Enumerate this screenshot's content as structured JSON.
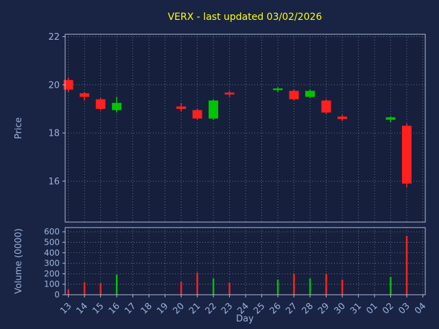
{
  "colors": {
    "background": "#192444",
    "plot_background": "#16203c",
    "title": "#ffff00",
    "axis_label": "#9db2dc",
    "tick_label": "#9db2dc",
    "grid": "#93a1bc",
    "spine": "#afbcd6",
    "up": "#00c400",
    "down": "#ff2020"
  },
  "chart_data": {
    "type": "candlestick",
    "title": "VERX - last updated 03/02/2026",
    "xlabel": "Day",
    "legend": "none",
    "grid": "dotted",
    "price_panel": {
      "ylabel": "Price",
      "yticks": [
        16,
        18,
        20,
        22
      ],
      "ylim": [
        14.3,
        22.1
      ]
    },
    "volume_panel": {
      "ylabel": "Volume (0000)",
      "yticks": [
        0,
        100,
        200,
        300,
        400,
        500,
        600
      ],
      "ylim": [
        0,
        640
      ]
    },
    "x_categories": [
      "13",
      "14",
      "15",
      "16",
      "17",
      "18",
      "19",
      "20",
      "21",
      "22",
      "23",
      "24",
      "25",
      "26",
      "27",
      "28",
      "29",
      "30",
      "31",
      "01",
      "02",
      "03",
      "04"
    ],
    "candles": [
      {
        "day": "13",
        "open": 20.2,
        "high": 20.3,
        "low": 19.7,
        "close": 19.8,
        "volume": 50
      },
      {
        "day": "14",
        "open": 19.65,
        "high": 19.7,
        "low": 19.35,
        "close": 19.5,
        "volume": 120
      },
      {
        "day": "15",
        "open": 19.4,
        "high": 19.45,
        "low": 18.95,
        "close": 19.0,
        "volume": 110
      },
      {
        "day": "16",
        "open": 18.95,
        "high": 19.5,
        "low": 18.85,
        "close": 19.25,
        "volume": 190
      },
      {
        "day": "20",
        "open": 19.1,
        "high": 19.25,
        "low": 18.9,
        "close": 19.0,
        "volume": 125
      },
      {
        "day": "21",
        "open": 18.95,
        "high": 19.0,
        "low": 18.55,
        "close": 18.6,
        "volume": 210
      },
      {
        "day": "22",
        "open": 18.6,
        "high": 19.4,
        "low": 18.55,
        "close": 19.35,
        "volume": 155
      },
      {
        "day": "23",
        "open": 19.68,
        "high": 19.75,
        "low": 19.5,
        "close": 19.6,
        "volume": 115
      },
      {
        "day": "26",
        "open": 19.78,
        "high": 19.9,
        "low": 19.7,
        "close": 19.85,
        "volume": 145
      },
      {
        "day": "27",
        "open": 19.75,
        "high": 19.8,
        "low": 19.35,
        "close": 19.4,
        "volume": 200
      },
      {
        "day": "28",
        "open": 19.5,
        "high": 19.8,
        "low": 19.45,
        "close": 19.75,
        "volume": 155
      },
      {
        "day": "29",
        "open": 19.35,
        "high": 19.4,
        "low": 18.8,
        "close": 18.85,
        "volume": 200
      },
      {
        "day": "30",
        "open": 18.68,
        "high": 18.75,
        "low": 18.5,
        "close": 18.58,
        "volume": 145
      },
      {
        "day": "02",
        "open": 18.55,
        "high": 18.7,
        "low": 18.45,
        "close": 18.65,
        "volume": 170
      },
      {
        "day": "03",
        "open": 18.3,
        "high": 18.4,
        "low": 15.75,
        "close": 15.9,
        "volume": 560
      }
    ]
  }
}
